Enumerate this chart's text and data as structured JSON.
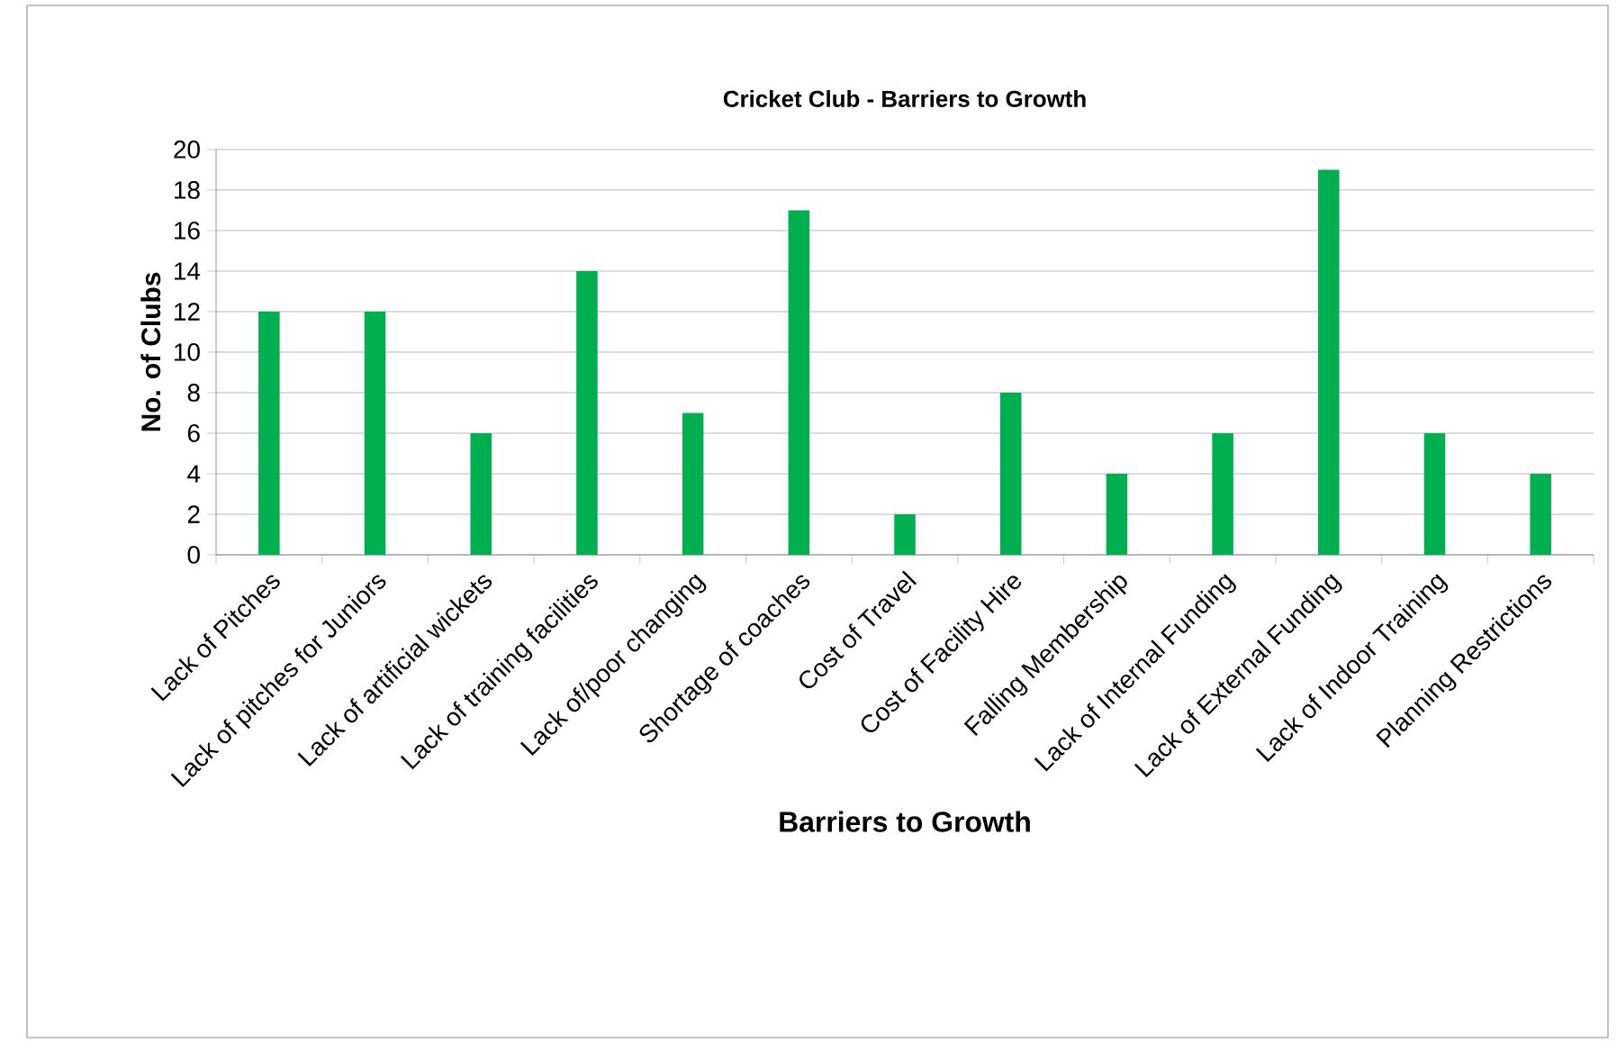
{
  "chart_data": {
    "type": "bar",
    "title": "Cricket Club - Barriers to Growth",
    "xlabel": "Barriers to Growth",
    "ylabel": "No. of Clubs",
    "categories": [
      "Lack of Pitches",
      "Lack of pitches for Juniors",
      "Lack of artificial wickets",
      "Lack of training facilities",
      "Lack of/poor changing",
      "Shortage of coaches",
      "Cost of Travel",
      "Cost of Facility Hire",
      "Falling Membership",
      "Lack of Internal Funding",
      "Lack of External Funding",
      "Lack of Indoor Training",
      "Planning Restrictions"
    ],
    "values": [
      12,
      12,
      6,
      14,
      7,
      17,
      2,
      8,
      4,
      6,
      19,
      6,
      4
    ],
    "color": "#00b050",
    "ylim": [
      0,
      20
    ],
    "yticks": [
      0,
      2,
      4,
      6,
      8,
      10,
      12,
      14,
      16,
      18,
      20
    ],
    "grid": "y"
  }
}
